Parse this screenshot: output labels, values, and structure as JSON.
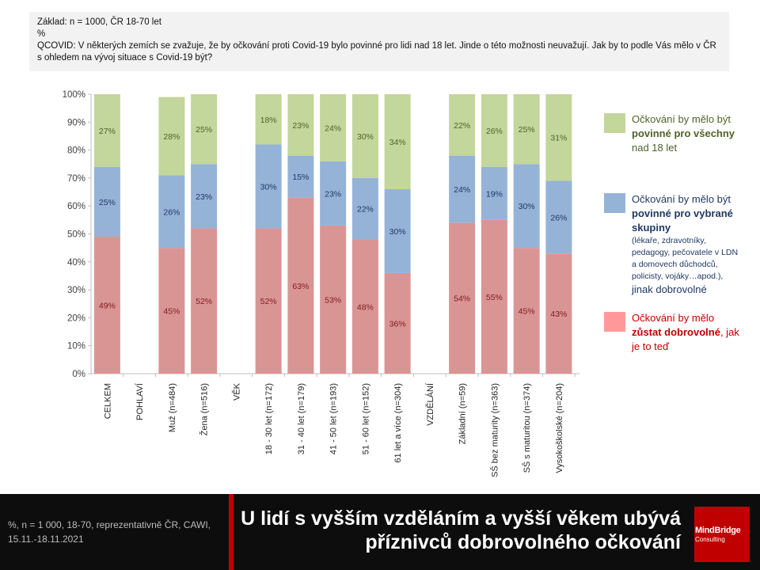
{
  "header": {
    "base_line": "Základ: n = 1000, ČR 18-70 let",
    "unit_line": "%",
    "question": "QCOVID: V některých zemích se zvažuje, že by očkování proti Covid-19 bylo povinné pro lidi nad 18 let. Jinde o této možnosti neuvažují. Jak by to podle Vás mělo v ČR s ohledem na vývoj situace s Covid-19 být?"
  },
  "legend": {
    "green": {
      "pre": "Očkování by mělo být ",
      "bold": "povinné pro všechny",
      "post": " nad 18 let"
    },
    "blue": {
      "pre": "Očkování by mělo být ",
      "bold": "povinné pro vybrané skupiny",
      "sub": "(lékaře, zdravotníky, pedagogy, pečovatele v LDN a domovech důchodců, policisty, vojáky…apod.),",
      "post": "jinak dobrovolné"
    },
    "red": {
      "pre": "Očkování by mělo ",
      "bold": "zůstat dobrovolné",
      "post": ", jak je to teď"
    }
  },
  "chart_data": {
    "type": "bar",
    "stacked": true,
    "categories": [
      "CELKEM",
      "POHLAVÍ",
      "Muž (n=484)",
      "Žena (n=516)",
      "VĚK",
      "18 - 30 let (n=172)",
      "31 - 40 let (n=179)",
      "41 - 50 let (n=193)",
      "51 - 60 let (n=152)",
      "61 let a více (n=304)",
      "VZDĚLÁNÍ",
      "Základní (n=59)",
      "SŠ bez maturity (n=363)",
      "SŠ s maturitou (n=374)",
      "Vysokoškolské (n=204)"
    ],
    "series": [
      {
        "key": "red",
        "values": [
          49,
          null,
          45,
          52,
          null,
          52,
          63,
          53,
          48,
          36,
          null,
          54,
          55,
          45,
          43
        ]
      },
      {
        "key": "blue",
        "values": [
          25,
          null,
          26,
          23,
          null,
          30,
          15,
          23,
          22,
          30,
          null,
          24,
          19,
          30,
          26
        ]
      },
      {
        "key": "green",
        "values": [
          27,
          null,
          28,
          25,
          null,
          18,
          23,
          24,
          30,
          34,
          null,
          22,
          26,
          25,
          31
        ]
      }
    ],
    "y_ticks": [
      "0%",
      "10%",
      "20%",
      "30%",
      "40%",
      "50%",
      "60%",
      "70%",
      "80%",
      "90%",
      "100%"
    ],
    "ylim": [
      0,
      100
    ],
    "value_suffix": "%",
    "legend_position": "right",
    "grid": false
  },
  "colors": {
    "red": "#d99594",
    "blue": "#95b3d7",
    "green": "#c3d69b",
    "red_text": "#c00000",
    "blue_text": "#1f3864",
    "green_text": "#4f6228",
    "label_red": "#7f1b1b",
    "label_blue": "#1f3864",
    "label_green": "#4f6228"
  },
  "footer": {
    "note": "%, n = 1 000, 18-70, reprezentativně ČR, CAWI, 15.11.-18.11.2021",
    "title": "U lidí s vyšším vzděláním a vyšší věkem ubývá příznivců dobrovolného očkování",
    "logo_name": "MindBridge",
    "logo_sub": "Consulting"
  }
}
